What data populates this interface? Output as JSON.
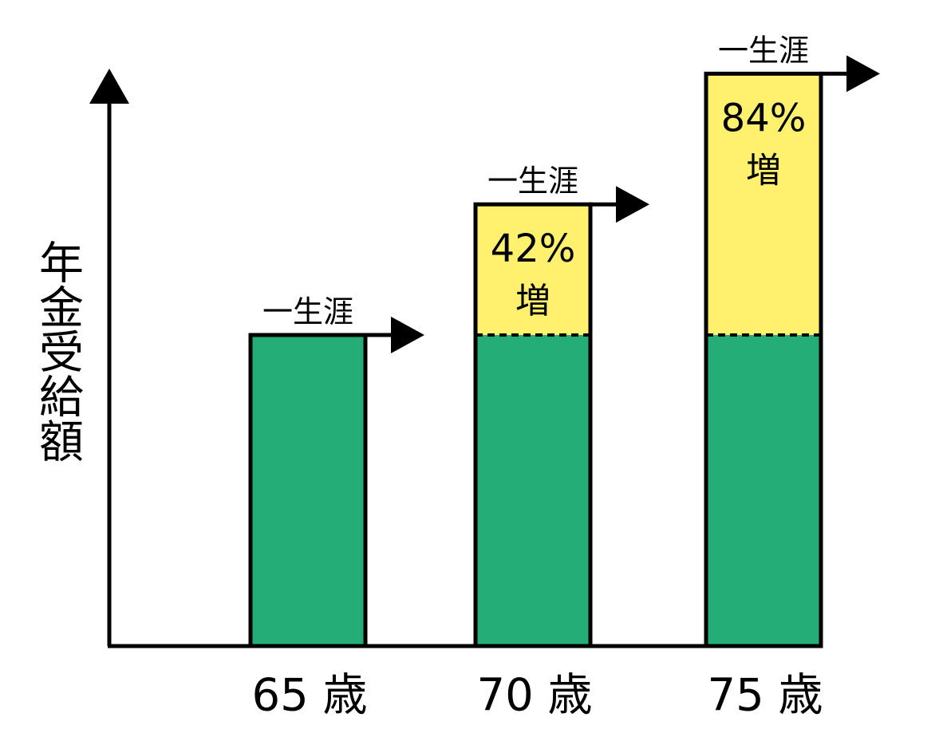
{
  "chart_data": {
    "type": "bar",
    "ylabel": "年金受給額",
    "categories": [
      "65 歳",
      "70 歳",
      "75 歳"
    ],
    "base_value": 100,
    "values": [
      100,
      142,
      184
    ],
    "increase_labels": [
      {
        "percent": "",
        "suffix": ""
      },
      {
        "percent": "42%",
        "suffix": "増"
      },
      {
        "percent": "84%",
        "suffix": "増"
      }
    ],
    "annotation": "一生涯",
    "ylim": [
      0,
      200
    ],
    "grid": false,
    "legend": "none"
  },
  "colors": {
    "base": "#24ad77",
    "increase": "#fff06e",
    "outline": "#000000",
    "background": "#ffffff"
  }
}
